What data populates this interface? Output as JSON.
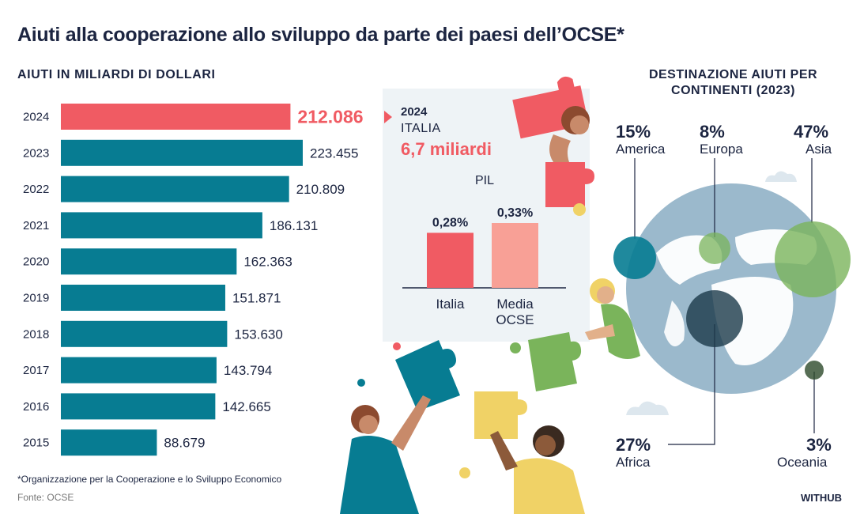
{
  "title": "Aiuti alla cooperazione allo sviluppo da parte dei paesi dell’OCSE*",
  "subtitle": "AIUTI IN MILIARDI DI DOLLARI",
  "footnote": "*Organizzazione per la Cooperazione e lo Sviluppo Economico",
  "source": "Fonte: OCSE",
  "brand": "WITHUB",
  "colors": {
    "highlight": "#f05b63",
    "bar": "#077c92",
    "navy": "#1c2541",
    "pink": "#f8a096",
    "globe": "#9bb9cc"
  },
  "chart_data": [
    {
      "type": "bar",
      "orientation": "horizontal",
      "categories": [
        "2024",
        "2023",
        "2022",
        "2021",
        "2020",
        "2019",
        "2018",
        "2017",
        "2016",
        "2015"
      ],
      "values": [
        212086,
        223455,
        210809,
        186131,
        162363,
        151871,
        153630,
        143794,
        142665,
        88679
      ],
      "value_labels": [
        "212.086",
        "223.455",
        "210.809",
        "186.131",
        "162.363",
        "151.871",
        "153.630",
        "143.794",
        "142.665",
        "88.679"
      ],
      "highlight": "2024"
    },
    {
      "type": "bar",
      "year": "2024",
      "country": "ITALIA",
      "amount": "6,7 miliardi",
      "ylabel": "PIL",
      "categories": [
        "Italia",
        "Media OCSE"
      ],
      "values": [
        0.28,
        0.33
      ],
      "value_labels": [
        "0,28%",
        "0,33%"
      ]
    },
    {
      "type": "bubble",
      "title": "DESTINAZIONE AIUTI PER CONTINENTI (2023)",
      "categories": [
        "America",
        "Europa",
        "Asia",
        "Africa",
        "Oceania"
      ],
      "values": [
        15,
        8,
        47,
        27,
        3
      ],
      "value_labels": [
        "15%",
        "8%",
        "47%",
        "27%",
        "3%"
      ]
    }
  ]
}
